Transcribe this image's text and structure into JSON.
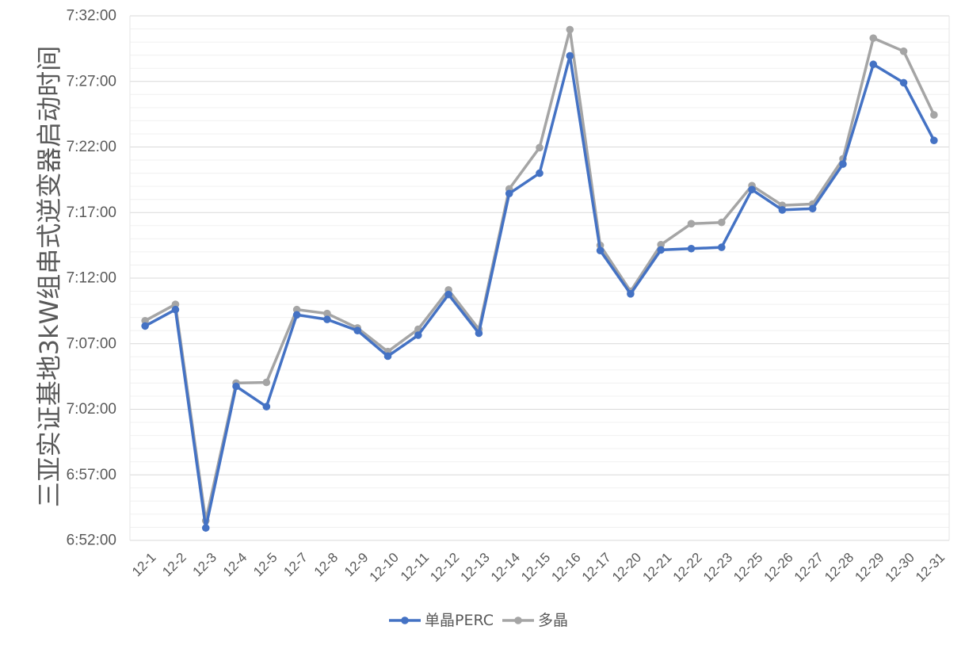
{
  "chart_data": {
    "type": "line",
    "title": "",
    "ylabel": "三亚实证基地3kW组串式逆变器启动时间",
    "xlabel": "",
    "categories": [
      "12-1",
      "12-2",
      "12-3",
      "12-4",
      "12-5",
      "12-7",
      "12-8",
      "12-9",
      "12-10",
      "12-11",
      "12-12",
      "12-13",
      "12-14",
      "12-15",
      "12-16",
      "12-17",
      "12-20",
      "12-21",
      "12-22",
      "12-23",
      "12-25",
      "12-26",
      "12-27",
      "12-28",
      "12-29",
      "12-30",
      "12-31"
    ],
    "yticks": [
      "6:52:00",
      "6:57:00",
      "7:02:00",
      "7:07:00",
      "7:12:00",
      "7:17:00",
      "7:22:00",
      "7:27:00",
      "7:32:00"
    ],
    "ylim_minutes": [
      412,
      452
    ],
    "grid": true,
    "legend_position": "bottom",
    "series": [
      {
        "name": "单晶PERC",
        "color": "#4472C4",
        "values": [
          428.35,
          429.6,
          412.95,
          423.75,
          422.2,
          429.2,
          428.85,
          428.0,
          426.05,
          427.65,
          430.75,
          427.8,
          438.45,
          440.0,
          448.95,
          434.1,
          430.8,
          434.15,
          434.25,
          434.35,
          438.75,
          437.2,
          437.3,
          440.7,
          448.3,
          446.9,
          442.5
        ],
        "labels": [
          "7:08:21",
          "7:09:36",
          "6:52:57",
          "7:03:45",
          "7:02:12",
          "7:09:12",
          "7:08:51",
          "7:08:00",
          "7:06:03",
          "7:07:39",
          "7:10:45",
          "7:07:48",
          "7:18:27",
          "7:20:00",
          "7:28:57",
          "7:14:06",
          "7:10:48",
          "7:14:09",
          "7:14:15",
          "7:14:21",
          "7:18:45",
          "7:17:12",
          "7:17:18",
          "7:20:42",
          "7:28:18",
          "7:26:54",
          "7:22:30"
        ]
      },
      {
        "name": "多晶",
        "color": "#A5A5A5",
        "values": [
          428.75,
          430.0,
          413.5,
          424.0,
          424.05,
          429.6,
          429.3,
          428.2,
          426.4,
          428.1,
          431.1,
          428.1,
          438.8,
          441.95,
          450.95,
          434.5,
          431.0,
          434.55,
          436.15,
          436.25,
          439.05,
          437.55,
          437.65,
          441.1,
          450.3,
          449.3,
          444.45
        ],
        "labels": [
          "7:08:45",
          "7:10:00",
          "6:53:30",
          "7:04:00",
          "7:04:03",
          "7:09:36",
          "7:09:18",
          "7:08:12",
          "7:06:24",
          "7:08:06",
          "7:11:06",
          "7:08:06",
          "7:18:48",
          "7:21:57",
          "7:30:57",
          "7:14:30",
          "7:11:00",
          "7:14:33",
          "7:16:09",
          "7:16:15",
          "7:19:03",
          "7:17:33",
          "7:17:39",
          "7:21:06",
          "7:30:18",
          "7:29:18",
          "7:24:27"
        ]
      }
    ]
  }
}
